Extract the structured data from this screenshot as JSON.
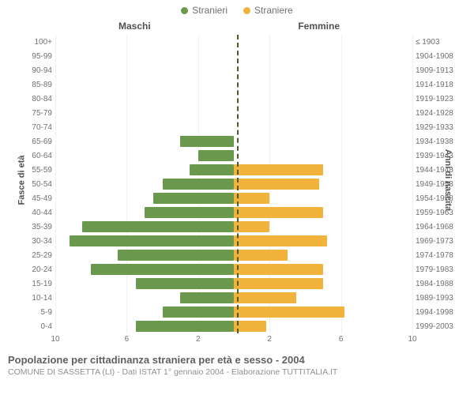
{
  "legend": {
    "series_a": {
      "label": "Stranieri",
      "color": "#6a994e"
    },
    "series_b": {
      "label": "Straniere",
      "color": "#f2b33d"
    }
  },
  "column_titles": {
    "left": "Maschi",
    "right": "Femmine"
  },
  "y_axis_labels": {
    "left": "Fasce di età",
    "right": "Anni di nascita"
  },
  "x_axis": {
    "max": 10,
    "ticks_left": [
      10,
      6,
      2
    ],
    "ticks_right": [
      2,
      6,
      10
    ]
  },
  "chart": {
    "type": "population-pyramid",
    "background_color": "#ffffff",
    "divider_color": "#4a5a2a",
    "rows": [
      {
        "age": "100+",
        "birth": "≤ 1903",
        "m": 0,
        "f": 0
      },
      {
        "age": "95-99",
        "birth": "1904-1908",
        "m": 0,
        "f": 0
      },
      {
        "age": "90-94",
        "birth": "1909-1913",
        "m": 0,
        "f": 0
      },
      {
        "age": "85-89",
        "birth": "1914-1918",
        "m": 0,
        "f": 0
      },
      {
        "age": "80-84",
        "birth": "1919-1923",
        "m": 0,
        "f": 0
      },
      {
        "age": "75-79",
        "birth": "1924-1928",
        "m": 0,
        "f": 0
      },
      {
        "age": "70-74",
        "birth": "1929-1933",
        "m": 0,
        "f": 0
      },
      {
        "age": "65-69",
        "birth": "1934-1938",
        "m": 3.0,
        "f": 0
      },
      {
        "age": "60-64",
        "birth": "1939-1943",
        "m": 2.0,
        "f": 0
      },
      {
        "age": "55-59",
        "birth": "1944-1948",
        "m": 2.5,
        "f": 5.0
      },
      {
        "age": "50-54",
        "birth": "1949-1953",
        "m": 4.0,
        "f": 4.8
      },
      {
        "age": "45-49",
        "birth": "1954-1958",
        "m": 4.5,
        "f": 2.0
      },
      {
        "age": "40-44",
        "birth": "1959-1963",
        "m": 5.0,
        "f": 5.0
      },
      {
        "age": "35-39",
        "birth": "1964-1968",
        "m": 8.5,
        "f": 2.0
      },
      {
        "age": "30-34",
        "birth": "1969-1973",
        "m": 9.2,
        "f": 5.2
      },
      {
        "age": "25-29",
        "birth": "1974-1978",
        "m": 6.5,
        "f": 3.0
      },
      {
        "age": "20-24",
        "birth": "1979-1983",
        "m": 8.0,
        "f": 5.0
      },
      {
        "age": "15-19",
        "birth": "1984-1988",
        "m": 5.5,
        "f": 5.0
      },
      {
        "age": "10-14",
        "birth": "1989-1993",
        "m": 3.0,
        "f": 3.5
      },
      {
        "age": "5-9",
        "birth": "1994-1998",
        "m": 4.0,
        "f": 6.2
      },
      {
        "age": "0-4",
        "birth": "1999-2003",
        "m": 5.5,
        "f": 1.8
      }
    ]
  },
  "footer": {
    "title": "Popolazione per cittadinanza straniera per età e sesso - 2004",
    "subtitle": "COMUNE DI SASSETTA (LI) - Dati ISTAT 1° gennaio 2004 - Elaborazione TUTTITALIA.IT"
  }
}
